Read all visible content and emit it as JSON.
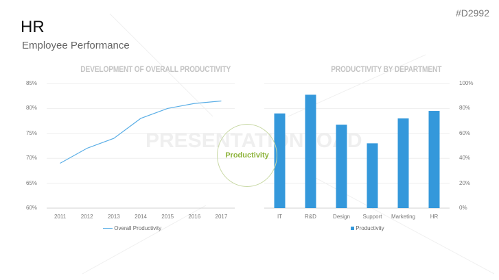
{
  "header": {
    "title": "HR",
    "subtitle": "Employee Performance",
    "code": "#D2992"
  },
  "center": {
    "label": "Productivity"
  },
  "watermark": "PRESENTATIONLOAD",
  "colors": {
    "line": "#5aaee6",
    "bar": "#3498db",
    "accent": "#8db33a"
  },
  "chart_data": [
    {
      "type": "line",
      "title": "DEVELOPMENT OF OVERALL PRODUCTIVITY",
      "categories": [
        "2011",
        "2012",
        "2013",
        "2014",
        "2015",
        "2016",
        "2017"
      ],
      "series": [
        {
          "name": "Overall Productivity",
          "values": [
            69,
            72,
            74,
            78,
            80,
            81,
            81.5
          ]
        }
      ],
      "ylim": [
        60,
        85
      ],
      "yticks": [
        "60%",
        "65%",
        "70%",
        "75%",
        "80%",
        "85%"
      ],
      "grid": true,
      "legend": "bottom"
    },
    {
      "type": "bar",
      "title": "PRODUCTIVITY BY DEPARTMENT",
      "categories": [
        "IT",
        "R&D",
        "Design",
        "Support",
        "Marketing",
        "HR"
      ],
      "series": [
        {
          "name": "Productivity",
          "values": [
            76,
            91,
            67,
            52,
            72,
            78
          ]
        }
      ],
      "ylim": [
        0,
        100
      ],
      "yticks": [
        "0%",
        "20%",
        "40%",
        "60%",
        "80%",
        "100%"
      ],
      "yaxis": "right",
      "grid": true,
      "legend": "bottom"
    }
  ]
}
